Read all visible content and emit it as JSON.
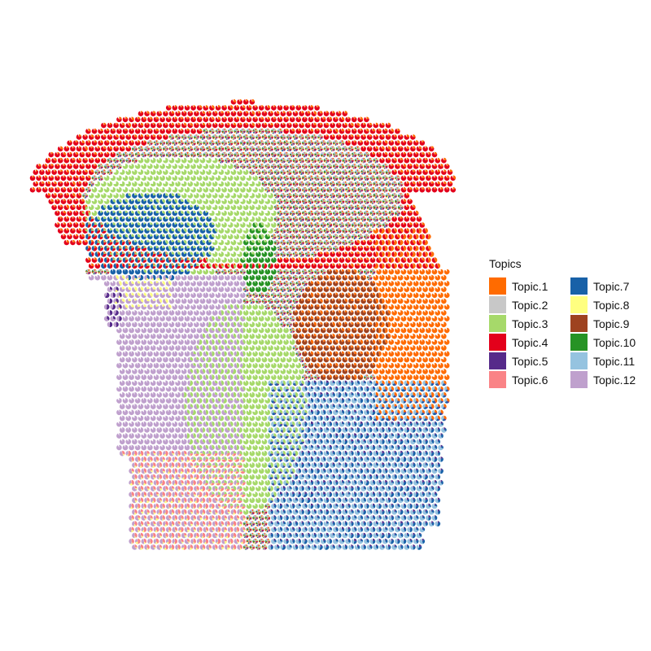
{
  "chart_data": {
    "type": "scatter",
    "subtype": "spatial-pie-scatter",
    "title": "",
    "xlabel": "",
    "ylabel": "",
    "grid": false,
    "axes_visible": false,
    "legend": {
      "title": "Topics",
      "placement": "right",
      "columns": 2
    },
    "series": [
      {
        "name": "Topic.1",
        "color": "#FF6B00"
      },
      {
        "name": "Topic.2",
        "color": "#C8C8C8"
      },
      {
        "name": "Topic.3",
        "color": "#A6D96A"
      },
      {
        "name": "Topic.4",
        "color": "#E3001B"
      },
      {
        "name": "Topic.5",
        "color": "#562A8A"
      },
      {
        "name": "Topic.6",
        "color": "#FA8386"
      },
      {
        "name": "Topic.7",
        "color": "#1861A8"
      },
      {
        "name": "Topic.8",
        "color": "#FFFF80"
      },
      {
        "name": "Topic.9",
        "color": "#9E4220"
      },
      {
        "name": "Topic.10",
        "color": "#279325"
      },
      {
        "name": "Topic.11",
        "color": "#95C3E0"
      },
      {
        "name": "Topic.12",
        "color": "#BFA0CD"
      }
    ]
  }
}
